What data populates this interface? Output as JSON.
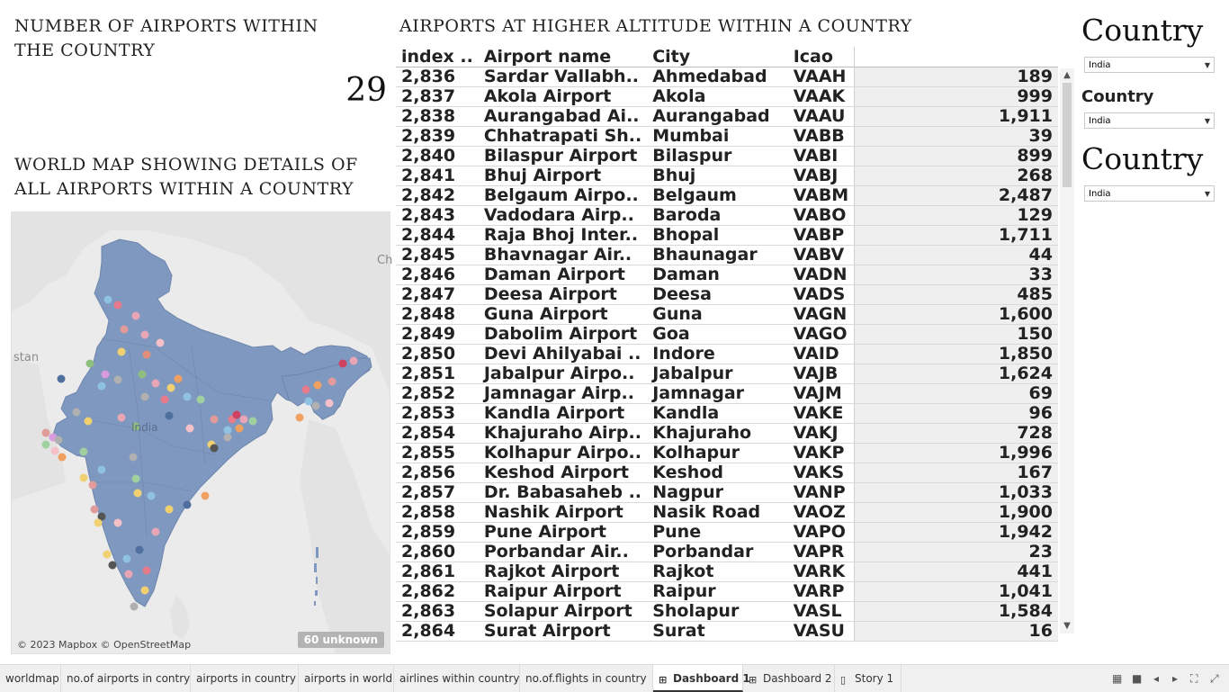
{
  "count_panel": {
    "title": "Number of airports within the country",
    "value": "29"
  },
  "map_panel": {
    "title": "World map showing details of all airports within a country",
    "labels": {
      "stan": "stan",
      "ch": "Ch",
      "india": "India"
    },
    "copyright": "© 2023 Mapbox © OpenStreetMap",
    "unknown_badge": "60 unknown",
    "land_color": "#7f98bf",
    "background_color": "#ebebeb"
  },
  "table_panel": {
    "title": "Airports at higher altitude within a country",
    "headers": [
      "index ..",
      "Airport name",
      "City",
      "Icao",
      ""
    ],
    "rows": [
      [
        "2,836",
        "Sardar Vallabh..",
        "Ahmedabad",
        "VAAH",
        "189"
      ],
      [
        "2,837",
        "Akola Airport",
        "Akola",
        "VAAK",
        "999"
      ],
      [
        "2,838",
        "Aurangabad Ai..",
        "Aurangabad",
        "VAAU",
        "1,911"
      ],
      [
        "2,839",
        "Chhatrapati Sh..",
        "Mumbai",
        "VABB",
        "39"
      ],
      [
        "2,840",
        "Bilaspur Airport",
        "Bilaspur",
        "VABI",
        "899"
      ],
      [
        "2,841",
        "Bhuj Airport",
        "Bhuj",
        "VABJ",
        "268"
      ],
      [
        "2,842",
        "Belgaum Airpo..",
        "Belgaum",
        "VABM",
        "2,487"
      ],
      [
        "2,843",
        "Vadodara Airp..",
        "Baroda",
        "VABO",
        "129"
      ],
      [
        "2,844",
        "Raja Bhoj Inter..",
        "Bhopal",
        "VABP",
        "1,711"
      ],
      [
        "2,845",
        "Bhavnagar Air..",
        "Bhaunagar",
        "VABV",
        "44"
      ],
      [
        "2,846",
        "Daman Airport",
        "Daman",
        "VADN",
        "33"
      ],
      [
        "2,847",
        "Deesa Airport",
        "Deesa",
        "VADS",
        "485"
      ],
      [
        "2,848",
        "Guna Airport",
        "Guna",
        "VAGN",
        "1,600"
      ],
      [
        "2,849",
        "Dabolim Airport",
        "Goa",
        "VAGO",
        "150"
      ],
      [
        "2,850",
        "Devi Ahilyabai ..",
        "Indore",
        "VAID",
        "1,850"
      ],
      [
        "2,851",
        "Jabalpur Airpo..",
        "Jabalpur",
        "VAJB",
        "1,624"
      ],
      [
        "2,852",
        "Jamnagar Airp..",
        "Jamnagar",
        "VAJM",
        "69"
      ],
      [
        "2,853",
        "Kandla Airport",
        "Kandla",
        "VAKE",
        "96"
      ],
      [
        "2,854",
        "Khajuraho Airp..",
        "Khajuraho",
        "VAKJ",
        "728"
      ],
      [
        "2,855",
        "Kolhapur Airpo..",
        "Kolhapur",
        "VAKP",
        "1,996"
      ],
      [
        "2,856",
        "Keshod Airport",
        "Keshod",
        "VAKS",
        "167"
      ],
      [
        "2,857",
        "Dr. Babasaheb ..",
        "Nagpur",
        "VANP",
        "1,033"
      ],
      [
        "2,858",
        "Nashik Airport",
        "Nasik Road",
        "VAOZ",
        "1,900"
      ],
      [
        "2,859",
        "Pune Airport",
        "Pune",
        "VAPO",
        "1,942"
      ],
      [
        "2,860",
        "Porbandar Air..",
        "Porbandar",
        "VAPR",
        "23"
      ],
      [
        "2,861",
        "Rajkot Airport",
        "Rajkot",
        "VARK",
        "441"
      ],
      [
        "2,862",
        "Raipur Airport",
        "Raipur",
        "VARP",
        "1,041"
      ],
      [
        "2,863",
        "Solapur Airport",
        "Sholapur",
        "VASL",
        "1,584"
      ],
      [
        "2,864",
        "Surat Airport",
        "Surat",
        "VASU",
        "16"
      ]
    ]
  },
  "filters": [
    {
      "title": "Country",
      "value": "India",
      "style": "large"
    },
    {
      "title": "Country",
      "value": "India",
      "style": "small"
    },
    {
      "title": "Country",
      "value": "India",
      "style": "large"
    }
  ],
  "tabs": [
    {
      "label": "worldmap",
      "icon": "",
      "active": false
    },
    {
      "label": "no.of airports in contry",
      "icon": "",
      "active": false
    },
    {
      "label": "airports in country",
      "icon": "",
      "active": false
    },
    {
      "label": "airports in world",
      "icon": "",
      "active": false
    },
    {
      "label": "airlines within country",
      "icon": "",
      "active": false
    },
    {
      "label": "no.of.flights in country",
      "icon": "",
      "active": false
    },
    {
      "label": "Dashboard 1",
      "icon": "dashboard-icon",
      "active": true
    },
    {
      "label": "Dashboard 2",
      "icon": "dashboard-icon",
      "active": false
    },
    {
      "label": "Story 1",
      "icon": "story-icon",
      "active": false
    }
  ],
  "nav_icons": [
    "grid-view-icon",
    "filmstrip-icon",
    "prev-icon",
    "next-icon",
    "fit-icon",
    "fullscreen-icon"
  ]
}
